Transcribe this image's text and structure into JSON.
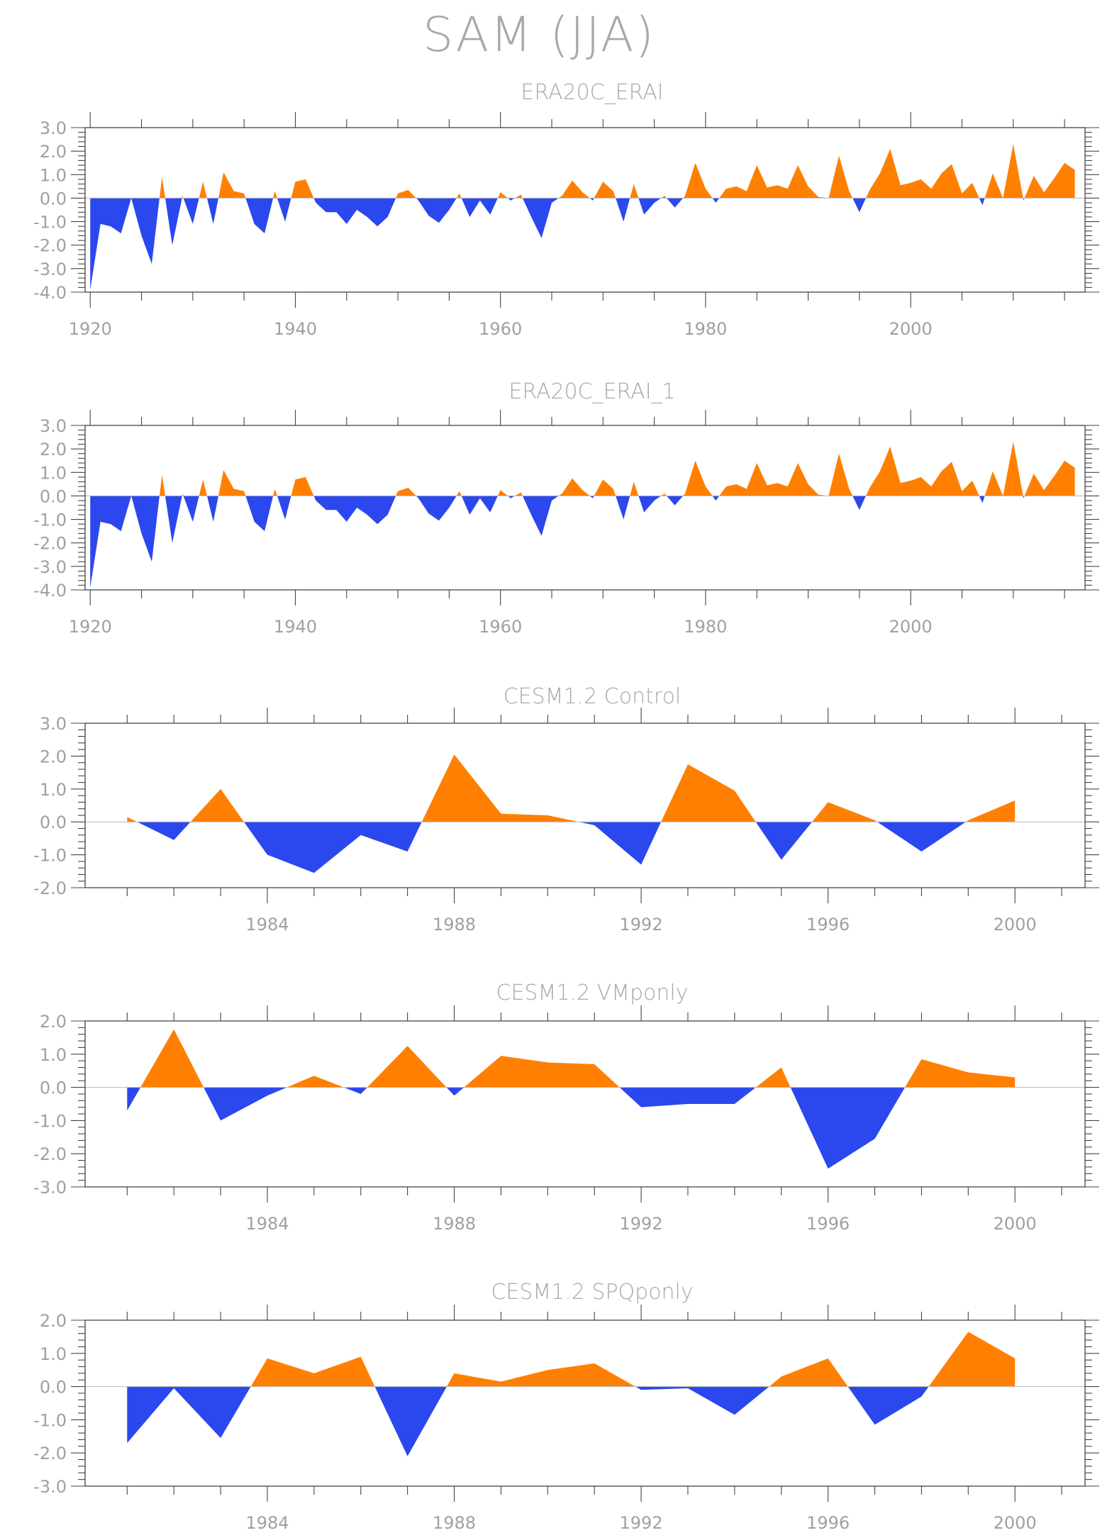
{
  "title": "SAM (JJA)",
  "colors": {
    "positive": "#ff8000",
    "negative": "#2b47ee"
  },
  "chart_data": [
    {
      "type": "area",
      "title": "ERA20C_ERAI",
      "x_start": 1920,
      "x": [
        1920,
        1921,
        1922,
        1923,
        1924,
        1925,
        1926,
        1927,
        1928,
        1929,
        1930,
        1931,
        1932,
        1933,
        1934,
        1935,
        1936,
        1937,
        1938,
        1939,
        1940,
        1941,
        1942,
        1943,
        1944,
        1945,
        1946,
        1947,
        1948,
        1949,
        1950,
        1951,
        1952,
        1953,
        1954,
        1955,
        1956,
        1957,
        1958,
        1959,
        1960,
        1961,
        1962,
        1963,
        1964,
        1965,
        1966,
        1967,
        1968,
        1969,
        1970,
        1971,
        1972,
        1973,
        1974,
        1975,
        1976,
        1977,
        1978,
        1979,
        1980,
        1981,
        1982,
        1983,
        1984,
        1985,
        1986,
        1987,
        1988,
        1989,
        1990,
        1991,
        1992,
        1993,
        1994,
        1995,
        1996,
        1997,
        1998,
        1999,
        2000,
        2001,
        2002,
        2003,
        2004,
        2005,
        2006,
        2007,
        2008,
        2009,
        2010,
        2011,
        2012,
        2013,
        2014,
        2015,
        2016
      ],
      "values": [
        -3.9,
        -1.1,
        -1.2,
        -1.5,
        0.0,
        -1.6,
        -2.8,
        0.9,
        -2.0,
        0.1,
        -1.1,
        0.7,
        -1.1,
        1.1,
        0.3,
        0.2,
        -1.1,
        -1.5,
        0.3,
        -1.0,
        0.7,
        0.8,
        -0.2,
        -0.6,
        -0.6,
        -1.1,
        -0.5,
        -0.8,
        -1.2,
        -0.8,
        0.2,
        0.35,
        -0.1,
        -0.75,
        -1.05,
        -0.5,
        0.2,
        -0.8,
        -0.1,
        -0.7,
        0.25,
        -0.1,
        0.15,
        -0.8,
        -1.7,
        -0.2,
        0.1,
        0.75,
        0.25,
        -0.1,
        0.7,
        0.3,
        -1.0,
        0.6,
        -0.7,
        -0.2,
        0.1,
        -0.4,
        0.1,
        1.5,
        0.4,
        -0.2,
        0.4,
        0.5,
        0.3,
        1.4,
        0.45,
        0.55,
        0.4,
        1.4,
        0.5,
        0.05,
        0.0,
        1.8,
        0.3,
        -0.6,
        0.35,
        1.05,
        2.1,
        0.55,
        0.65,
        0.8,
        0.4,
        1.05,
        1.45,
        0.2,
        0.65,
        -0.3,
        1.05,
        0.0,
        2.3,
        -0.1,
        0.95,
        0.25,
        0.85,
        1.5,
        1.2
      ],
      "xticks": [
        1920,
        1940,
        1960,
        1980,
        2000
      ],
      "yticks": [
        "3.0",
        "2.0",
        "1.0",
        "0.0",
        "-1.0",
        "-2.0",
        "-3.0",
        "-4.0"
      ],
      "ylim": [
        -4,
        3
      ],
      "xlim": [
        1919.5,
        2017
      ]
    },
    {
      "type": "area",
      "title": "ERA20C_ERAI_1",
      "x": [
        1920,
        1921,
        1922,
        1923,
        1924,
        1925,
        1926,
        1927,
        1928,
        1929,
        1930,
        1931,
        1932,
        1933,
        1934,
        1935,
        1936,
        1937,
        1938,
        1939,
        1940,
        1941,
        1942,
        1943,
        1944,
        1945,
        1946,
        1947,
        1948,
        1949,
        1950,
        1951,
        1952,
        1953,
        1954,
        1955,
        1956,
        1957,
        1958,
        1959,
        1960,
        1961,
        1962,
        1963,
        1964,
        1965,
        1966,
        1967,
        1968,
        1969,
        1970,
        1971,
        1972,
        1973,
        1974,
        1975,
        1976,
        1977,
        1978,
        1979,
        1980,
        1981,
        1982,
        1983,
        1984,
        1985,
        1986,
        1987,
        1988,
        1989,
        1990,
        1991,
        1992,
        1993,
        1994,
        1995,
        1996,
        1997,
        1998,
        1999,
        2000,
        2001,
        2002,
        2003,
        2004,
        2005,
        2006,
        2007,
        2008,
        2009,
        2010,
        2011,
        2012,
        2013,
        2014,
        2015,
        2016
      ],
      "values": [
        -3.9,
        -1.1,
        -1.2,
        -1.5,
        0.0,
        -1.6,
        -2.8,
        0.9,
        -2.0,
        0.1,
        -1.1,
        0.7,
        -1.1,
        1.1,
        0.3,
        0.2,
        -1.1,
        -1.5,
        0.3,
        -1.0,
        0.7,
        0.8,
        -0.2,
        -0.6,
        -0.6,
        -1.1,
        -0.5,
        -0.8,
        -1.2,
        -0.8,
        0.2,
        0.35,
        -0.1,
        -0.75,
        -1.05,
        -0.5,
        0.2,
        -0.8,
        -0.1,
        -0.7,
        0.25,
        -0.1,
        0.15,
        -0.8,
        -1.7,
        -0.2,
        0.1,
        0.75,
        0.25,
        -0.1,
        0.7,
        0.3,
        -1.0,
        0.6,
        -0.7,
        -0.2,
        0.1,
        -0.4,
        0.1,
        1.5,
        0.4,
        -0.2,
        0.4,
        0.5,
        0.3,
        1.4,
        0.45,
        0.55,
        0.4,
        1.4,
        0.5,
        0.05,
        0.0,
        1.8,
        0.3,
        -0.6,
        0.35,
        1.05,
        2.1,
        0.55,
        0.65,
        0.8,
        0.4,
        1.05,
        1.45,
        0.2,
        0.65,
        -0.3,
        1.05,
        0.0,
        2.3,
        -0.1,
        0.95,
        0.25,
        0.85,
        1.5,
        1.2
      ],
      "xticks": [
        1920,
        1940,
        1960,
        1980,
        2000
      ],
      "yticks": [
        "3.0",
        "2.0",
        "1.0",
        "0.0",
        "-1.0",
        "-2.0",
        "-3.0",
        "-4.0"
      ],
      "ylim": [
        -4,
        3
      ],
      "xlim": [
        1919.5,
        2017
      ]
    },
    {
      "type": "area",
      "title": "CESM1.2 Control",
      "x": [
        1981,
        1982,
        1983,
        1984,
        1985,
        1986,
        1987,
        1988,
        1989,
        1990,
        1991,
        1992,
        1993,
        1994,
        1995,
        1996,
        1997,
        1998,
        1999,
        2000
      ],
      "values": [
        0.15,
        -0.55,
        1.0,
        -1.0,
        -1.55,
        -0.4,
        -0.9,
        2.05,
        0.25,
        0.2,
        -0.1,
        -1.3,
        1.75,
        0.95,
        -1.15,
        0.6,
        0.05,
        -0.9,
        0.05,
        0.65
      ],
      "xticks": [
        1984,
        1988,
        1992,
        1996,
        2000
      ],
      "yticks": [
        "3.0",
        "2.0",
        "1.0",
        "0.0",
        "-1.0",
        "-2.0"
      ],
      "ylim": [
        -2,
        3
      ],
      "xlim": [
        1980.1,
        2001.5
      ]
    },
    {
      "type": "area",
      "title": "CESM1.2 VMponly",
      "x": [
        1981,
        1982,
        1983,
        1984,
        1985,
        1986,
        1987,
        1988,
        1989,
        1990,
        1991,
        1992,
        1993,
        1994,
        1995,
        1996,
        1997,
        1998,
        1999,
        2000
      ],
      "values": [
        -0.7,
        1.75,
        -1.0,
        -0.25,
        0.35,
        -0.2,
        1.25,
        -0.25,
        0.95,
        0.75,
        0.7,
        -0.6,
        -0.5,
        -0.5,
        0.6,
        -2.45,
        -1.55,
        0.85,
        0.45,
        0.3
      ],
      "xticks": [
        1984,
        1988,
        1992,
        1996,
        2000
      ],
      "yticks": [
        "2.0",
        "1.0",
        "0.0",
        "-1.0",
        "-2.0",
        "-3.0"
      ],
      "ylim": [
        -3,
        2
      ],
      "xlim": [
        1980.1,
        2001.5
      ]
    },
    {
      "type": "area",
      "title": "CESM1.2 SPQponly",
      "x": [
        1981,
        1982,
        1983,
        1984,
        1985,
        1986,
        1987,
        1988,
        1989,
        1990,
        1991,
        1992,
        1993,
        1994,
        1995,
        1996,
        1997,
        1998,
        1999,
        2000
      ],
      "values": [
        -1.7,
        -0.05,
        -1.55,
        0.85,
        0.4,
        0.9,
        -2.1,
        0.4,
        0.15,
        0.5,
        0.7,
        -0.1,
        -0.05,
        -0.85,
        0.3,
        0.85,
        -1.15,
        -0.3,
        1.65,
        0.85
      ],
      "xticks": [
        1984,
        1988,
        1992,
        1996,
        2000
      ],
      "yticks": [
        "2.0",
        "1.0",
        "0.0",
        "-1.0",
        "-2.0",
        "-3.0"
      ],
      "ylim": [
        -3,
        2
      ],
      "xlim": [
        1980.1,
        2001.5
      ]
    }
  ]
}
